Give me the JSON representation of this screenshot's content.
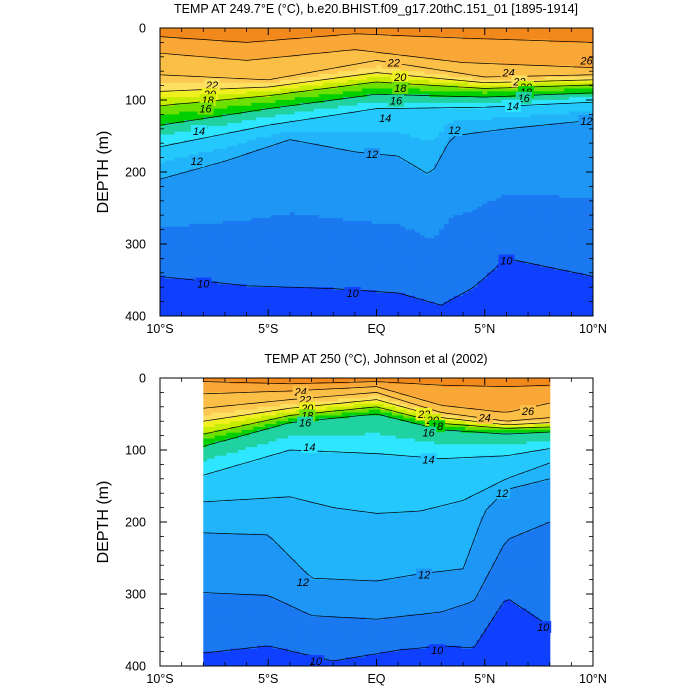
{
  "chart_data": [
    {
      "type": "contour",
      "title": "TEMP AT 249.7°E (°C), b.e20.BHIST.f09_g17.20thC.151_01 [1895-1914]",
      "xlabel": "",
      "ylabel": "DEPTH (m)",
      "x_ticks": [
        "10°S",
        "5°S",
        "EQ",
        "5°N",
        "10°N"
      ],
      "x_tick_values": [
        -10,
        -5,
        0,
        5,
        10
      ],
      "y_ticks": [
        "0",
        "100",
        "200",
        "300",
        "400"
      ],
      "y_tick_values": [
        0,
        100,
        200,
        300,
        400
      ],
      "xlim": [
        -10,
        10
      ],
      "ylim": [
        400,
        0
      ],
      "data_xlim": [
        -10,
        10
      ],
      "contour_interval": 1,
      "field_range": [
        8,
        28
      ],
      "isotherm_depths": [
        {
          "temp": 26,
          "lat": [
            -10,
            -6,
            -1,
            4,
            10
          ],
          "depth": [
            12,
            20,
            8,
            14,
            20
          ]
        },
        {
          "temp": 24,
          "lat": [
            -10,
            -6,
            -1,
            4,
            10
          ],
          "depth": [
            35,
            45,
            30,
            48,
            55
          ]
        },
        {
          "temp": 22,
          "lat": [
            -10,
            -5,
            0,
            5,
            10
          ],
          "depth": [
            65,
            72,
            45,
            68,
            65
          ]
        },
        {
          "temp": 20,
          "lat": [
            -10,
            -5,
            0,
            5,
            10
          ],
          "depth": [
            88,
            82,
            62,
            76,
            72
          ]
        },
        {
          "temp": 18,
          "lat": [
            -10,
            -5,
            0,
            5,
            10
          ],
          "depth": [
            108,
            94,
            75,
            84,
            79
          ]
        },
        {
          "temp": 16,
          "lat": [
            -10,
            -5,
            0,
            5,
            10
          ],
          "depth": [
            135,
            112,
            92,
            96,
            90
          ]
        },
        {
          "temp": 14,
          "lat": [
            -10,
            -5,
            0,
            5,
            10
          ],
          "depth": [
            165,
            135,
            112,
            110,
            103
          ]
        },
        {
          "temp": 12,
          "lat": [
            -10,
            -7,
            -4,
            -1,
            1,
            2.5,
            3.5,
            6,
            10
          ],
          "depth": [
            210,
            185,
            155,
            172,
            178,
            205,
            150,
            140,
            128
          ]
        },
        {
          "temp": 10,
          "lat": [
            -10,
            -6,
            -2,
            1,
            3,
            4.5,
            6,
            10
          ],
          "depth": [
            345,
            358,
            362,
            368,
            385,
            360,
            320,
            345
          ]
        }
      ],
      "labels": [
        {
          "text": "26",
          "lat": 9.7,
          "depth": 45
        },
        {
          "text": "24",
          "lat": 6.1,
          "depth": 62
        },
        {
          "text": "22",
          "lat": -7.6,
          "depth": 79
        },
        {
          "text": "22",
          "lat": 0.8,
          "depth": 48
        },
        {
          "text": "22",
          "lat": 6.6,
          "depth": 74
        },
        {
          "text": "20",
          "lat": -7.7,
          "depth": 92
        },
        {
          "text": "20",
          "lat": 1.1,
          "depth": 68
        },
        {
          "text": "20",
          "lat": 6.9,
          "depth": 82
        },
        {
          "text": "18",
          "lat": -7.8,
          "depth": 100
        },
        {
          "text": "18",
          "lat": 1.1,
          "depth": 83
        },
        {
          "text": "18",
          "lat": 6.9,
          "depth": 89
        },
        {
          "text": "16",
          "lat": -7.9,
          "depth": 112
        },
        {
          "text": "16",
          "lat": 0.9,
          "depth": 101
        },
        {
          "text": "16",
          "lat": 6.8,
          "depth": 97
        },
        {
          "text": "14",
          "lat": -8.2,
          "depth": 143
        },
        {
          "text": "14",
          "lat": 0.4,
          "depth": 125
        },
        {
          "text": "14",
          "lat": 6.3,
          "depth": 108
        },
        {
          "text": "12",
          "lat": -8.3,
          "depth": 185
        },
        {
          "text": "12",
          "lat": -0.2,
          "depth": 175
        },
        {
          "text": "12",
          "lat": 3.6,
          "depth": 142
        },
        {
          "text": "12",
          "lat": 9.7,
          "depth": 129
        },
        {
          "text": "10",
          "lat": -8.0,
          "depth": 355
        },
        {
          "text": "10",
          "lat": -1.1,
          "depth": 368
        },
        {
          "text": "10",
          "lat": 6.0,
          "depth": 323
        }
      ]
    },
    {
      "type": "contour",
      "title": "TEMP AT 250 (°C), Johnson et al (2002)",
      "xlabel": "",
      "ylabel": "DEPTH (m)",
      "x_ticks": [
        "10°S",
        "5°S",
        "EQ",
        "5°N",
        "10°N"
      ],
      "x_tick_values": [
        -10,
        -5,
        0,
        5,
        10
      ],
      "y_ticks": [
        "0",
        "100",
        "200",
        "300",
        "400"
      ],
      "y_tick_values": [
        0,
        100,
        200,
        300,
        400
      ],
      "xlim": [
        -10,
        10
      ],
      "ylim": [
        400,
        0
      ],
      "data_xlim": [
        -8,
        8
      ],
      "contour_interval": 1,
      "field_range": [
        8,
        28
      ],
      "isotherm_depths": [
        {
          "temp": 26,
          "lat": [
            -8,
            -4,
            0,
            3,
            6,
            8
          ],
          "depth": [
            5,
            8,
            5,
            10,
            12,
            10
          ]
        },
        {
          "temp": 24,
          "lat": [
            -8,
            -4,
            0,
            3,
            6,
            8
          ],
          "depth": [
            22,
            18,
            12,
            38,
            48,
            35
          ]
        },
        {
          "temp": 22,
          "lat": [
            -8,
            -4,
            0,
            3,
            6,
            8
          ],
          "depth": [
            42,
            30,
            20,
            48,
            60,
            55
          ]
        },
        {
          "temp": 20,
          "lat": [
            -8,
            -4,
            0,
            3,
            6,
            8
          ],
          "depth": [
            60,
            42,
            30,
            55,
            65,
            62
          ]
        },
        {
          "temp": 18,
          "lat": [
            -8,
            -4,
            0,
            3,
            6,
            8
          ],
          "depth": [
            78,
            52,
            40,
            63,
            70,
            68
          ]
        },
        {
          "temp": 16,
          "lat": [
            -8,
            -4,
            0,
            3,
            6,
            8
          ],
          "depth": [
            95,
            62,
            50,
            72,
            78,
            75
          ]
        },
        {
          "temp": 14,
          "lat": [
            -8,
            -4,
            0,
            3,
            6,
            8
          ],
          "depth": [
            135,
            100,
            105,
            112,
            108,
            98
          ]
        },
        {
          "temp": 13,
          "lat": [
            -8,
            -4,
            -2,
            0,
            2,
            4,
            6,
            8
          ],
          "depth": [
            172,
            165,
            180,
            188,
            185,
            170,
            140,
            118
          ]
        },
        {
          "temp": 12,
          "lat": [
            -8,
            -5,
            -3,
            0,
            2,
            4,
            5,
            6,
            8
          ],
          "depth": [
            215,
            218,
            278,
            282,
            272,
            265,
            185,
            155,
            140
          ]
        },
        {
          "temp": 11,
          "lat": [
            -8,
            -5,
            -3,
            0,
            3,
            4.5,
            6,
            8
          ],
          "depth": [
            298,
            302,
            330,
            335,
            325,
            310,
            225,
            200
          ]
        },
        {
          "temp": 10,
          "lat": [
            -8,
            -5,
            -2,
            1,
            3,
            4.5,
            6,
            8
          ],
          "depth": [
            382,
            372,
            393,
            378,
            372,
            375,
            305,
            345
          ]
        }
      ],
      "labels": [
        {
          "text": "24",
          "lat": -3.5,
          "depth": 19
        },
        {
          "text": "22",
          "lat": -3.3,
          "depth": 30
        },
        {
          "text": "20",
          "lat": -3.2,
          "depth": 42
        },
        {
          "text": "18",
          "lat": -3.2,
          "depth": 52
        },
        {
          "text": "16",
          "lat": -3.3,
          "depth": 62
        },
        {
          "text": "22",
          "lat": 2.2,
          "depth": 50
        },
        {
          "text": "20",
          "lat": 2.6,
          "depth": 58
        },
        {
          "text": "18",
          "lat": 2.8,
          "depth": 67
        },
        {
          "text": "16",
          "lat": 2.4,
          "depth": 76
        },
        {
          "text": "24",
          "lat": 5.0,
          "depth": 55
        },
        {
          "text": "26",
          "lat": 7.0,
          "depth": 46
        },
        {
          "text": "14",
          "lat": -3.1,
          "depth": 96
        },
        {
          "text": "14",
          "lat": 2.4,
          "depth": 113
        },
        {
          "text": "12",
          "lat": 5.8,
          "depth": 160
        },
        {
          "text": "12",
          "lat": -3.4,
          "depth": 283
        },
        {
          "text": "12",
          "lat": 2.2,
          "depth": 273
        },
        {
          "text": "10",
          "lat": 7.7,
          "depth": 346
        },
        {
          "text": "10",
          "lat": 2.8,
          "depth": 378
        },
        {
          "text": "10",
          "lat": -2.8,
          "depth": 393
        }
      ]
    }
  ]
}
